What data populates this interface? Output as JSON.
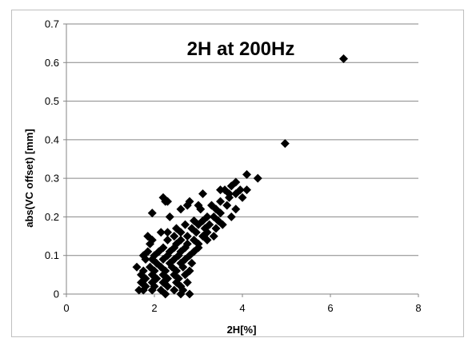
{
  "chart_data": {
    "type": "scatter",
    "title": "2H at 200Hz",
    "xlabel": "2H[%]",
    "ylabel": "abs(VC offset) [mm]",
    "xlim": [
      0,
      8
    ],
    "ylim": [
      0,
      0.7
    ],
    "x_ticks": [
      "0",
      "2",
      "4",
      "6",
      "8"
    ],
    "y_ticks": [
      "0",
      "0.1",
      "0.2",
      "0.3",
      "0.4",
      "0.5",
      "0.6",
      "0.7"
    ],
    "grid": "horizontal",
    "legend": "none",
    "marker": "diamond",
    "marker_color": "#000000",
    "points": [
      [
        6.3,
        0.61
      ],
      [
        4.97,
        0.39
      ],
      [
        4.1,
        0.31
      ],
      [
        4.35,
        0.3
      ],
      [
        3.85,
        0.29
      ],
      [
        3.75,
        0.28
      ],
      [
        3.6,
        0.27
      ],
      [
        3.5,
        0.27
      ],
      [
        3.95,
        0.27
      ],
      [
        4.1,
        0.27
      ],
      [
        3.7,
        0.26
      ],
      [
        3.85,
        0.26
      ],
      [
        3.1,
        0.26
      ],
      [
        3.7,
        0.25
      ],
      [
        3.5,
        0.24
      ],
      [
        4.0,
        0.25
      ],
      [
        2.2,
        0.25
      ],
      [
        2.25,
        0.24
      ],
      [
        2.3,
        0.24
      ],
      [
        2.8,
        0.24
      ],
      [
        2.75,
        0.23
      ],
      [
        3.0,
        0.23
      ],
      [
        3.3,
        0.23
      ],
      [
        3.65,
        0.23
      ],
      [
        2.6,
        0.22
      ],
      [
        3.05,
        0.22
      ],
      [
        3.4,
        0.22
      ],
      [
        3.85,
        0.22
      ],
      [
        3.5,
        0.21
      ],
      [
        1.95,
        0.21
      ],
      [
        3.2,
        0.2
      ],
      [
        2.35,
        0.2
      ],
      [
        3.35,
        0.2
      ],
      [
        3.75,
        0.2
      ],
      [
        2.9,
        0.19
      ],
      [
        3.1,
        0.19
      ],
      [
        3.45,
        0.19
      ],
      [
        2.7,
        0.18
      ],
      [
        3.0,
        0.18
      ],
      [
        3.25,
        0.18
      ],
      [
        3.55,
        0.18
      ],
      [
        2.5,
        0.17
      ],
      [
        2.85,
        0.17
      ],
      [
        3.15,
        0.17
      ],
      [
        3.4,
        0.17
      ],
      [
        2.3,
        0.16
      ],
      [
        2.6,
        0.16
      ],
      [
        2.95,
        0.16
      ],
      [
        3.2,
        0.16
      ],
      [
        2.15,
        0.16
      ],
      [
        1.85,
        0.15
      ],
      [
        2.45,
        0.15
      ],
      [
        2.75,
        0.15
      ],
      [
        3.1,
        0.15
      ],
      [
        3.35,
        0.15
      ],
      [
        1.95,
        0.14
      ],
      [
        2.3,
        0.14
      ],
      [
        2.6,
        0.14
      ],
      [
        2.9,
        0.14
      ],
      [
        3.2,
        0.14
      ],
      [
        1.9,
        0.13
      ],
      [
        2.5,
        0.13
      ],
      [
        2.75,
        0.13
      ],
      [
        3.0,
        0.13
      ],
      [
        2.2,
        0.12
      ],
      [
        2.45,
        0.12
      ],
      [
        2.7,
        0.12
      ],
      [
        3.0,
        0.12
      ],
      [
        1.85,
        0.11
      ],
      [
        2.1,
        0.11
      ],
      [
        2.35,
        0.11
      ],
      [
        2.6,
        0.11
      ],
      [
        2.9,
        0.11
      ],
      [
        1.75,
        0.1
      ],
      [
        2.0,
        0.1
      ],
      [
        2.3,
        0.1
      ],
      [
        2.55,
        0.1
      ],
      [
        2.8,
        0.1
      ],
      [
        1.95,
        0.09
      ],
      [
        2.2,
        0.09
      ],
      [
        2.45,
        0.09
      ],
      [
        2.7,
        0.09
      ],
      [
        1.8,
        0.09
      ],
      [
        2.05,
        0.08
      ],
      [
        2.35,
        0.08
      ],
      [
        2.6,
        0.08
      ],
      [
        2.85,
        0.08
      ],
      [
        1.6,
        0.07
      ],
      [
        1.9,
        0.07
      ],
      [
        2.15,
        0.07
      ],
      [
        2.4,
        0.07
      ],
      [
        2.65,
        0.07
      ],
      [
        1.75,
        0.06
      ],
      [
        2.0,
        0.06
      ],
      [
        2.25,
        0.06
      ],
      [
        2.5,
        0.06
      ],
      [
        2.8,
        0.06
      ],
      [
        1.7,
        0.05
      ],
      [
        1.95,
        0.05
      ],
      [
        2.2,
        0.05
      ],
      [
        2.45,
        0.05
      ],
      [
        2.7,
        0.05
      ],
      [
        1.8,
        0.04
      ],
      [
        2.05,
        0.04
      ],
      [
        2.3,
        0.04
      ],
      [
        2.55,
        0.04
      ],
      [
        1.7,
        0.03
      ],
      [
        1.95,
        0.03
      ],
      [
        2.2,
        0.03
      ],
      [
        2.5,
        0.03
      ],
      [
        2.75,
        0.03
      ],
      [
        1.8,
        0.02
      ],
      [
        2.0,
        0.02
      ],
      [
        2.3,
        0.02
      ],
      [
        2.6,
        0.02
      ],
      [
        1.65,
        0.01
      ],
      [
        1.75,
        0.01
      ],
      [
        1.95,
        0.01
      ],
      [
        2.15,
        0.01
      ],
      [
        2.45,
        0.01
      ],
      [
        2.65,
        0.01
      ],
      [
        2.25,
        0.0
      ],
      [
        2.6,
        0.0
      ],
      [
        2.8,
        0.0
      ]
    ]
  }
}
